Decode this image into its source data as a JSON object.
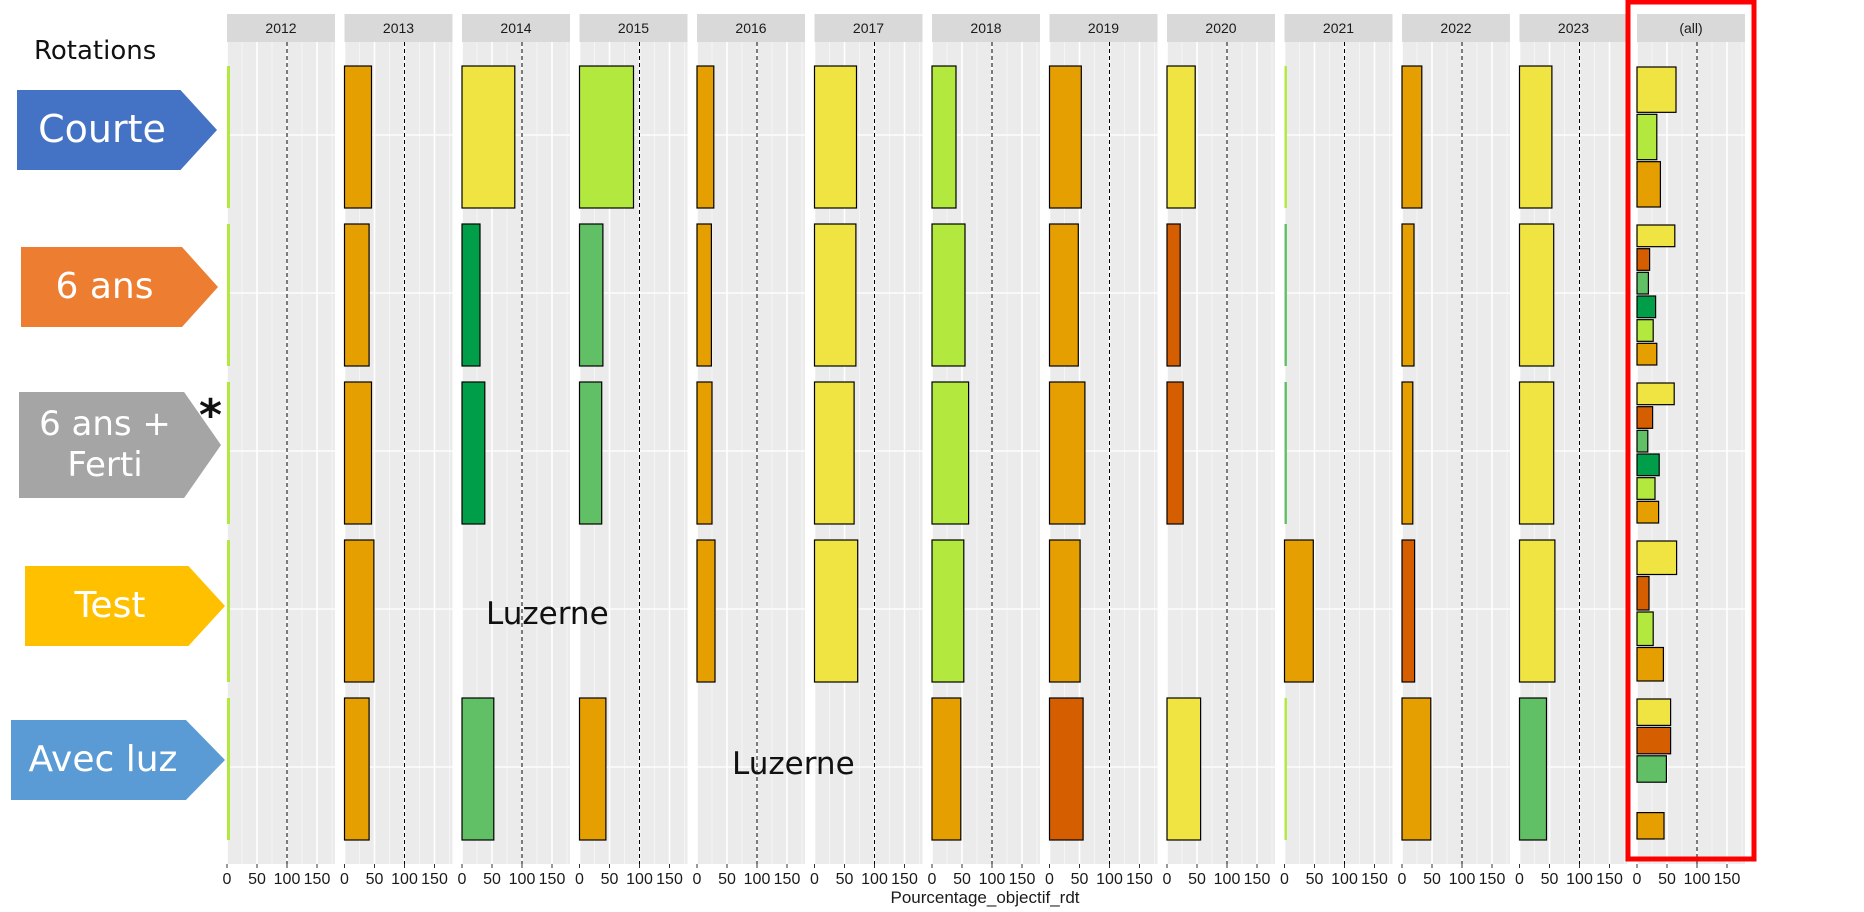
{
  "rotations": {
    "title": "Rotations",
    "items": [
      {
        "label": "Courte",
        "color": "#4472C4"
      },
      {
        "label": "6 ans",
        "color": "#ED7D31"
      },
      {
        "label": "6 ans +\nFerti",
        "color": "#A5A5A5"
      },
      {
        "label": "Test",
        "color": "#FFC000"
      },
      {
        "label": "Avec luz",
        "color": "#5B9BD5"
      }
    ]
  },
  "annotations": {
    "asterisk": "*",
    "luzerne_test_2014": "Luzerne",
    "luzerne_avecluz_2016": "Luzerne"
  },
  "highlight_color": "#FF0000",
  "chart_data": {
    "type": "bar",
    "orientation": "horizontal",
    "facets": [
      "2012",
      "2013",
      "2014",
      "2015",
      "2016",
      "2017",
      "2018",
      "2019",
      "2020",
      "2021",
      "2022",
      "2023",
      "(all)"
    ],
    "rows": [
      "Courte",
      "6 ans",
      "6 ans + Ferti",
      "Test",
      "Avec luz"
    ],
    "xlabel": "Pourcentage_objectif_rdt",
    "x_ticks": [
      0,
      50,
      100,
      150
    ],
    "xlim": [
      0,
      180
    ],
    "reference_line": 100,
    "bars": {
      "Courte": {
        "2012": [
          {
            "value": 5,
            "color": "#B3E83F"
          }
        ],
        "2013": [
          {
            "value": 45,
            "color": "#E69F00"
          }
        ],
        "2014": [
          {
            "value": 88,
            "color": "#F0E442"
          }
        ],
        "2015": [
          {
            "value": 90,
            "color": "#B3E83F"
          }
        ],
        "2016": [
          {
            "value": 28,
            "color": "#E69F00"
          }
        ],
        "2017": [
          {
            "value": 70,
            "color": "#F0E442"
          }
        ],
        "2018": [
          {
            "value": 40,
            "color": "#B3E83F"
          }
        ],
        "2019": [
          {
            "value": 53,
            "color": "#E69F00"
          }
        ],
        "2020": [
          {
            "value": 47,
            "color": "#F0E442"
          }
        ],
        "2021": [
          {
            "value": 4,
            "color": "#B3E83F"
          }
        ],
        "2022": [
          {
            "value": 33,
            "color": "#E69F00"
          }
        ],
        "2023": [
          {
            "value": 54,
            "color": "#F0E442"
          }
        ],
        "(all)": [
          {
            "value": 65,
            "color": "#F0E442"
          },
          {
            "value": 33,
            "color": "#B3E83F"
          },
          {
            "value": 39,
            "color": "#E69F00"
          }
        ]
      },
      "6 ans": {
        "2012": [
          {
            "value": 5,
            "color": "#B3E83F"
          }
        ],
        "2013": [
          {
            "value": 41,
            "color": "#E69F00"
          }
        ],
        "2014": [
          {
            "value": 30,
            "color": "#009E48"
          }
        ],
        "2015": [
          {
            "value": 39,
            "color": "#61C066"
          }
        ],
        "2016": [
          {
            "value": 24,
            "color": "#E69F00"
          }
        ],
        "2017": [
          {
            "value": 69,
            "color": "#F0E442"
          }
        ],
        "2018": [
          {
            "value": 55,
            "color": "#B3E83F"
          }
        ],
        "2019": [
          {
            "value": 48,
            "color": "#E69F00"
          }
        ],
        "2020": [
          {
            "value": 22,
            "color": "#D55E00"
          }
        ],
        "2021": [
          {
            "value": 4,
            "color": "#61C066"
          }
        ],
        "2022": [
          {
            "value": 20,
            "color": "#E69F00"
          }
        ],
        "2023": [
          {
            "value": 57,
            "color": "#F0E442"
          }
        ],
        "(all)": [
          {
            "value": 63,
            "color": "#F0E442"
          },
          {
            "value": 21,
            "color": "#D55E00"
          },
          {
            "value": 19,
            "color": "#61C066"
          },
          {
            "value": 31,
            "color": "#009E48"
          },
          {
            "value": 27,
            "color": "#B3E83F"
          },
          {
            "value": 33,
            "color": "#E69F00"
          }
        ]
      },
      "6 ans + Ferti": {
        "2012": [
          {
            "value": 5,
            "color": "#B3E83F"
          }
        ],
        "2013": [
          {
            "value": 45,
            "color": "#E69F00"
          }
        ],
        "2014": [
          {
            "value": 38,
            "color": "#009E48"
          }
        ],
        "2015": [
          {
            "value": 37,
            "color": "#61C066"
          }
        ],
        "2016": [
          {
            "value": 25,
            "color": "#E69F00"
          }
        ],
        "2017": [
          {
            "value": 66,
            "color": "#F0E442"
          }
        ],
        "2018": [
          {
            "value": 61,
            "color": "#B3E83F"
          }
        ],
        "2019": [
          {
            "value": 59,
            "color": "#E69F00"
          }
        ],
        "2020": [
          {
            "value": 27,
            "color": "#D55E00"
          }
        ],
        "2021": [
          {
            "value": 4,
            "color": "#61C066"
          }
        ],
        "2022": [
          {
            "value": 18,
            "color": "#E69F00"
          }
        ],
        "2023": [
          {
            "value": 57,
            "color": "#F0E442"
          }
        ],
        "(all)": [
          {
            "value": 62,
            "color": "#F0E442"
          },
          {
            "value": 26,
            "color": "#D55E00"
          },
          {
            "value": 18,
            "color": "#61C066"
          },
          {
            "value": 37,
            "color": "#009E48"
          },
          {
            "value": 30,
            "color": "#B3E83F"
          },
          {
            "value": 36,
            "color": "#E69F00"
          }
        ]
      },
      "Test": {
        "2012": [
          {
            "value": 5,
            "color": "#B3E83F"
          }
        ],
        "2013": [
          {
            "value": 49,
            "color": "#E69F00"
          }
        ],
        "2016": [
          {
            "value": 30,
            "color": "#E69F00"
          }
        ],
        "2017": [
          {
            "value": 72,
            "color": "#F0E442"
          }
        ],
        "2018": [
          {
            "value": 53,
            "color": "#B3E83F"
          }
        ],
        "2019": [
          {
            "value": 51,
            "color": "#E69F00"
          }
        ],
        "2021": [
          {
            "value": 48,
            "color": "#E69F00"
          }
        ],
        "2022": [
          {
            "value": 21,
            "color": "#D55E00"
          }
        ],
        "2023": [
          {
            "value": 59,
            "color": "#F0E442"
          }
        ],
        "(all)": [
          {
            "value": 66,
            "color": "#F0E442"
          },
          {
            "value": 20,
            "color": "#D55E00"
          },
          {
            "value": 27,
            "color": "#B3E83F"
          },
          {
            "value": 44,
            "color": "#E69F00"
          }
        ]
      },
      "Avec luz": {
        "2012": [
          {
            "value": 5,
            "color": "#B3E83F"
          }
        ],
        "2013": [
          {
            "value": 41,
            "color": "#E69F00"
          }
        ],
        "2014": [
          {
            "value": 53,
            "color": "#61C066"
          }
        ],
        "2015": [
          {
            "value": 44,
            "color": "#E69F00"
          }
        ],
        "2018": [
          {
            "value": 48,
            "color": "#E69F00"
          }
        ],
        "2019": [
          {
            "value": 56,
            "color": "#D55E00"
          }
        ],
        "2020": [
          {
            "value": 56,
            "color": "#F0E442"
          }
        ],
        "2021": [
          {
            "value": 4,
            "color": "#B3E83F"
          }
        ],
        "2022": [
          {
            "value": 48,
            "color": "#E69F00"
          }
        ],
        "2023": [
          {
            "value": 45,
            "color": "#61C066"
          }
        ],
        "(all)": [
          {
            "value": 56,
            "color": "#F0E442"
          },
          {
            "value": 56,
            "color": "#D55E00"
          },
          {
            "value": 49,
            "color": "#61C066"
          },
          {
            "value": 0,
            "color": "#ffffff"
          },
          {
            "value": 45,
            "color": "#E69F00"
          }
        ]
      }
    }
  }
}
